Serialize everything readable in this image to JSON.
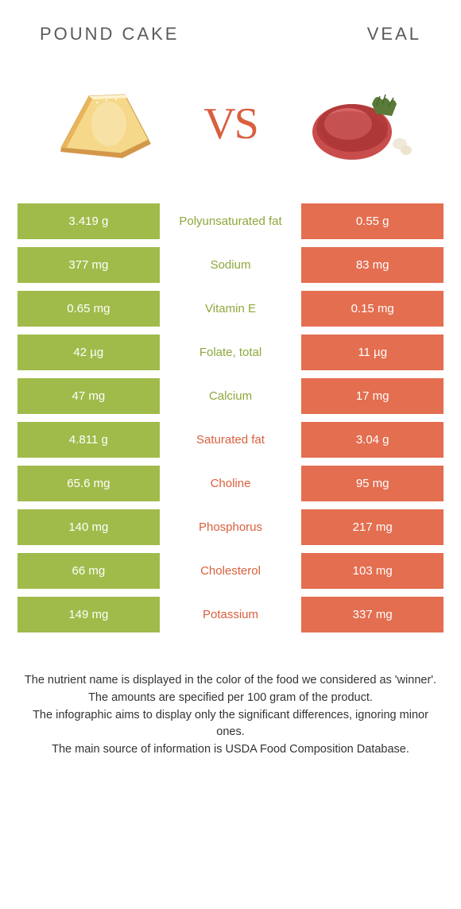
{
  "header": {
    "left_title": "POUND CAKE",
    "right_title": "VEAL",
    "vs_label": "VS"
  },
  "colors": {
    "green": "#a0bb4a",
    "orange": "#e36e50",
    "green_text": "#8ca83a",
    "orange_text": "#d95f3e"
  },
  "rows": [
    {
      "left": "3.419 g",
      "label": "Polyunsaturated fat",
      "right": "0.55 g",
      "winner": "green"
    },
    {
      "left": "377 mg",
      "label": "Sodium",
      "right": "83 mg",
      "winner": "green"
    },
    {
      "left": "0.65 mg",
      "label": "Vitamin E",
      "right": "0.15 mg",
      "winner": "green"
    },
    {
      "left": "42 µg",
      "label": "Folate, total",
      "right": "11 µg",
      "winner": "green"
    },
    {
      "left": "47 mg",
      "label": "Calcium",
      "right": "17 mg",
      "winner": "green"
    },
    {
      "left": "4.811 g",
      "label": "Saturated fat",
      "right": "3.04 g",
      "winner": "orange"
    },
    {
      "left": "65.6 mg",
      "label": "Choline",
      "right": "95 mg",
      "winner": "orange"
    },
    {
      "left": "140 mg",
      "label": "Phosphorus",
      "right": "217 mg",
      "winner": "orange"
    },
    {
      "left": "66 mg",
      "label": "Cholesterol",
      "right": "103 mg",
      "winner": "orange"
    },
    {
      "left": "149 mg",
      "label": "Potassium",
      "right": "337 mg",
      "winner": "orange"
    }
  ],
  "footer": {
    "line1": "The nutrient name is displayed in the color of the food we considered as 'winner'.",
    "line2": "The amounts are specified per 100 gram of the product.",
    "line3": "The infographic aims to display only the significant differences, ignoring minor ones.",
    "line4": "The main source of information is USDA Food Composition Database."
  }
}
